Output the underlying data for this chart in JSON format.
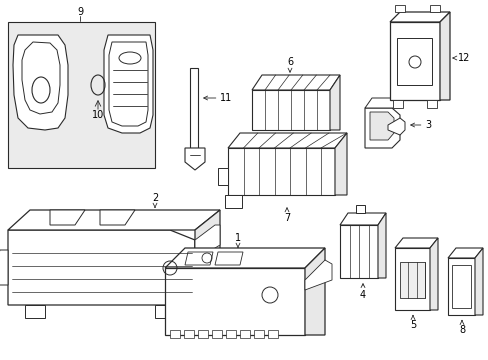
{
  "bg_color": "#ffffff",
  "line_color": "#2a2a2a",
  "fill_light": "#f0f0f0",
  "fig_width": 4.89,
  "fig_height": 3.6,
  "dpi": 100
}
